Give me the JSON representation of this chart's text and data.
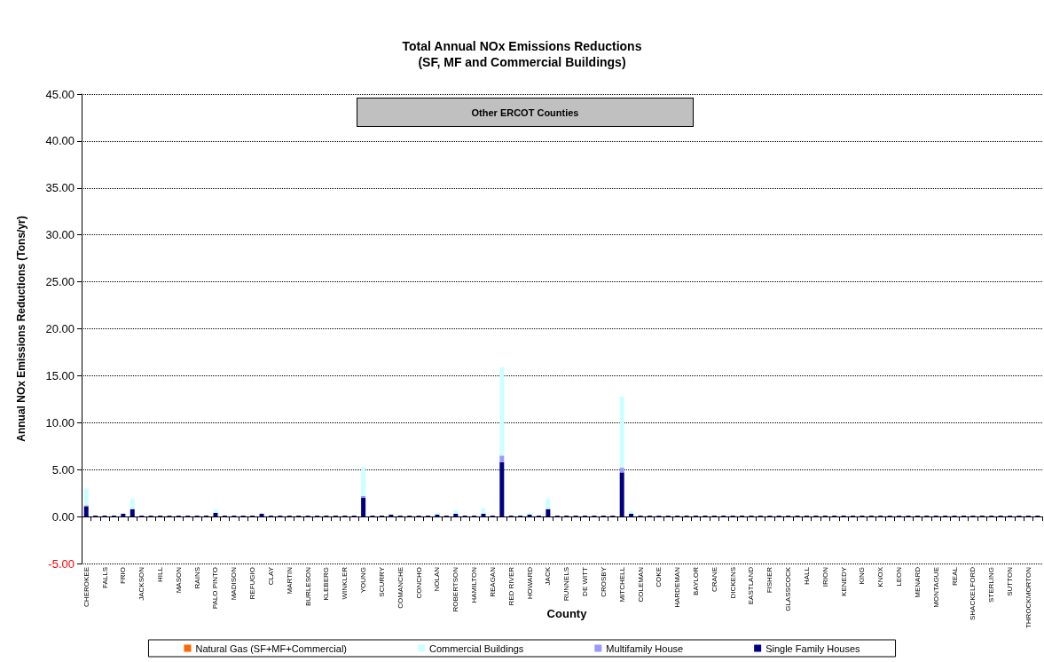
{
  "chart_data": {
    "type": "bar",
    "stacked": true,
    "title": "Total Annual NOx Emissions Reductions\n(SF, MF and Commercial Buildings)",
    "xlabel": "County",
    "ylabel": "Annual NOx Emissions Reductions (Tons/yr)",
    "annotations": [
      "Other ERCOT Counties"
    ],
    "categories": [
      "CHEROKEE",
      null,
      "FALLS",
      null,
      "FRIO",
      null,
      "JACKSON",
      null,
      "HILL",
      null,
      "MASON",
      null,
      "RAINS",
      null,
      "PALO PINTO",
      null,
      "MADISON",
      null,
      "REFUGIO",
      null,
      "CLAY",
      null,
      "MARTIN",
      null,
      "BURLESON",
      null,
      "KLEBERG",
      null,
      "WINKLER",
      null,
      "YOUNG",
      null,
      "SCURRY",
      null,
      "COMANCHE",
      null,
      "CONCHO",
      null,
      "NOLAN",
      null,
      "ROBERTSON",
      null,
      "HAMILTON",
      null,
      "REAGAN",
      null,
      "RED RIVER",
      null,
      "HOWARD",
      null,
      "JACK",
      null,
      "RUNNELS",
      null,
      "DE WITT",
      null,
      "CROSBY",
      null,
      "MITCHELL",
      null,
      "COLEMAN",
      null,
      "COKE",
      null,
      "HARDEMAN",
      null,
      "BAYLOR",
      null,
      "CRANE",
      null,
      "DICKENS",
      null,
      "EASTLAND",
      null,
      "FISHER",
      null,
      "GLASSCOCK",
      null,
      "HALL",
      null,
      "IRION",
      null,
      "KENEDY",
      null,
      "KING",
      null,
      "KNOX",
      null,
      "LEON",
      null,
      "MENARD",
      null,
      "MONTAGUE",
      null,
      "REAL",
      null,
      "SHACKELFORD",
      null,
      "STERLING",
      null,
      "SUTTON",
      null,
      "THROCKMORTON",
      null
    ],
    "series": [
      {
        "name": "Single Family Houses",
        "color": "#000080",
        "values": [
          1.1,
          0.1,
          0.1,
          0.1,
          0.3,
          0.8,
          0.1,
          0.1,
          0.1,
          0.1,
          0.1,
          0.1,
          0.1,
          0.1,
          0.4,
          0.1,
          0.1,
          0.1,
          0.1,
          0.3,
          0.1,
          0.1,
          0.1,
          0.1,
          0.1,
          0.1,
          0.1,
          0.1,
          0.1,
          0.1,
          2.0,
          0.1,
          0.1,
          0.2,
          0.1,
          0.1,
          0.1,
          0.1,
          0.2,
          0.1,
          0.3,
          0.1,
          0.1,
          0.3,
          0.1,
          5.8,
          0.1,
          0.1,
          0.2,
          0.1,
          0.8,
          0.1,
          0.1,
          0.1,
          0.1,
          0.1,
          0.1,
          0.1,
          4.7,
          0.3,
          0.1,
          0.1,
          0.1,
          0.1,
          0.1,
          0.1,
          0.1,
          0.1,
          0.1,
          0.1,
          0.1,
          0.1,
          0.1,
          0.1,
          0.1,
          0.1,
          0.1,
          0.1,
          0.1,
          0.1,
          0.1,
          0.1,
          0.1,
          0.1,
          0.1,
          0.1,
          0.1,
          0.1,
          0.1,
          0.1,
          0.1,
          0.1,
          0.1,
          0.1,
          0.1,
          0.1,
          0.1,
          0.1,
          0.1,
          0.1,
          0.1,
          0.1,
          0.1,
          0.1
        ]
      },
      {
        "name": "Multifamily House",
        "color": "#9999ff",
        "values": [
          0.1,
          0,
          0,
          0,
          0,
          0,
          0,
          0,
          0,
          0,
          0,
          0,
          0,
          0,
          0,
          0,
          0,
          0,
          0,
          0,
          0,
          0,
          0,
          0,
          0,
          0,
          0,
          0,
          0,
          0,
          0.2,
          0,
          0,
          0,
          0,
          0,
          0,
          0,
          0,
          0,
          0,
          0,
          0,
          0,
          0,
          0.7,
          0,
          0,
          0,
          0,
          0,
          0,
          0,
          0,
          0,
          0,
          0,
          0,
          0.5,
          0,
          0,
          0,
          0,
          0,
          0,
          0,
          0,
          0,
          0,
          0,
          0,
          0,
          0,
          0,
          0,
          0,
          0,
          0,
          0,
          0,
          0,
          0,
          0,
          0,
          0,
          0,
          0,
          0,
          0,
          0,
          0,
          0,
          0,
          0,
          0,
          0,
          0,
          0,
          0,
          0,
          0,
          0,
          0,
          0
        ]
      },
      {
        "name": "Commercial Buildings",
        "color": "#ccffff",
        "values": [
          1.8,
          0,
          0,
          0,
          0,
          1.1,
          0,
          0,
          0,
          0,
          0,
          0,
          0,
          0,
          0.4,
          0,
          0,
          0,
          0,
          null,
          0,
          0,
          0,
          0,
          0,
          0,
          0,
          0,
          0,
          0,
          3.1,
          0,
          0,
          0,
          0,
          0,
          0,
          0,
          0.2,
          0,
          0.4,
          0,
          0,
          0.6,
          0,
          9.4,
          0,
          0,
          0.2,
          0,
          1.1,
          0,
          0,
          0,
          0,
          0,
          0,
          0,
          7.6,
          0.3,
          0,
          0,
          0,
          0,
          0,
          0,
          0,
          0,
          0,
          0,
          0,
          0,
          0,
          0,
          0,
          0,
          0,
          0,
          0,
          0,
          0,
          0,
          0,
          0,
          0,
          0,
          0,
          0,
          0,
          0,
          0,
          0,
          0,
          0,
          0,
          0,
          0,
          0,
          0,
          0,
          0,
          0,
          0,
          0
        ]
      },
      {
        "name": "Natural Gas (SF+MF+Commercial)",
        "color": "#ff6600",
        "values": [
          0,
          0,
          0,
          0,
          0,
          0,
          0,
          0,
          0,
          0,
          0,
          0,
          0,
          0,
          0,
          0,
          0,
          0,
          0,
          0,
          0,
          0,
          0,
          0,
          0,
          0,
          0,
          0,
          0,
          0,
          0,
          0,
          0,
          0,
          0,
          0,
          0,
          0,
          0,
          0,
          0,
          0,
          0,
          0,
          0,
          0,
          0,
          0,
          0,
          0,
          0,
          0,
          0,
          0,
          0,
          0,
          0,
          0,
          0,
          0,
          0,
          0,
          0,
          0,
          0,
          0,
          0,
          0,
          0,
          0,
          0,
          0,
          0,
          0,
          0,
          0,
          0,
          0,
          0,
          0,
          0,
          0,
          0,
          0,
          0,
          0,
          0,
          0,
          0,
          0,
          0,
          0,
          0,
          0,
          0,
          0,
          0,
          0,
          0,
          0,
          0,
          0,
          0,
          0
        ]
      }
    ],
    "ylim": [
      -5,
      45
    ],
    "yticks": [
      {
        "value": -5,
        "label": "-5.00"
      },
      {
        "value": 0,
        "label": "0.00"
      },
      {
        "value": 5,
        "label": "5.00"
      },
      {
        "value": 10,
        "label": "10.00"
      },
      {
        "value": 15,
        "label": "15.00"
      },
      {
        "value": 20,
        "label": "20.00"
      },
      {
        "value": 25,
        "label": "25.00"
      },
      {
        "value": 30,
        "label": "30.00"
      },
      {
        "value": 35,
        "label": "35.00"
      },
      {
        "value": 40,
        "label": "40.00"
      },
      {
        "value": 45,
        "label": "45.00"
      }
    ],
    "grid": "y",
    "legend": "bottom"
  }
}
